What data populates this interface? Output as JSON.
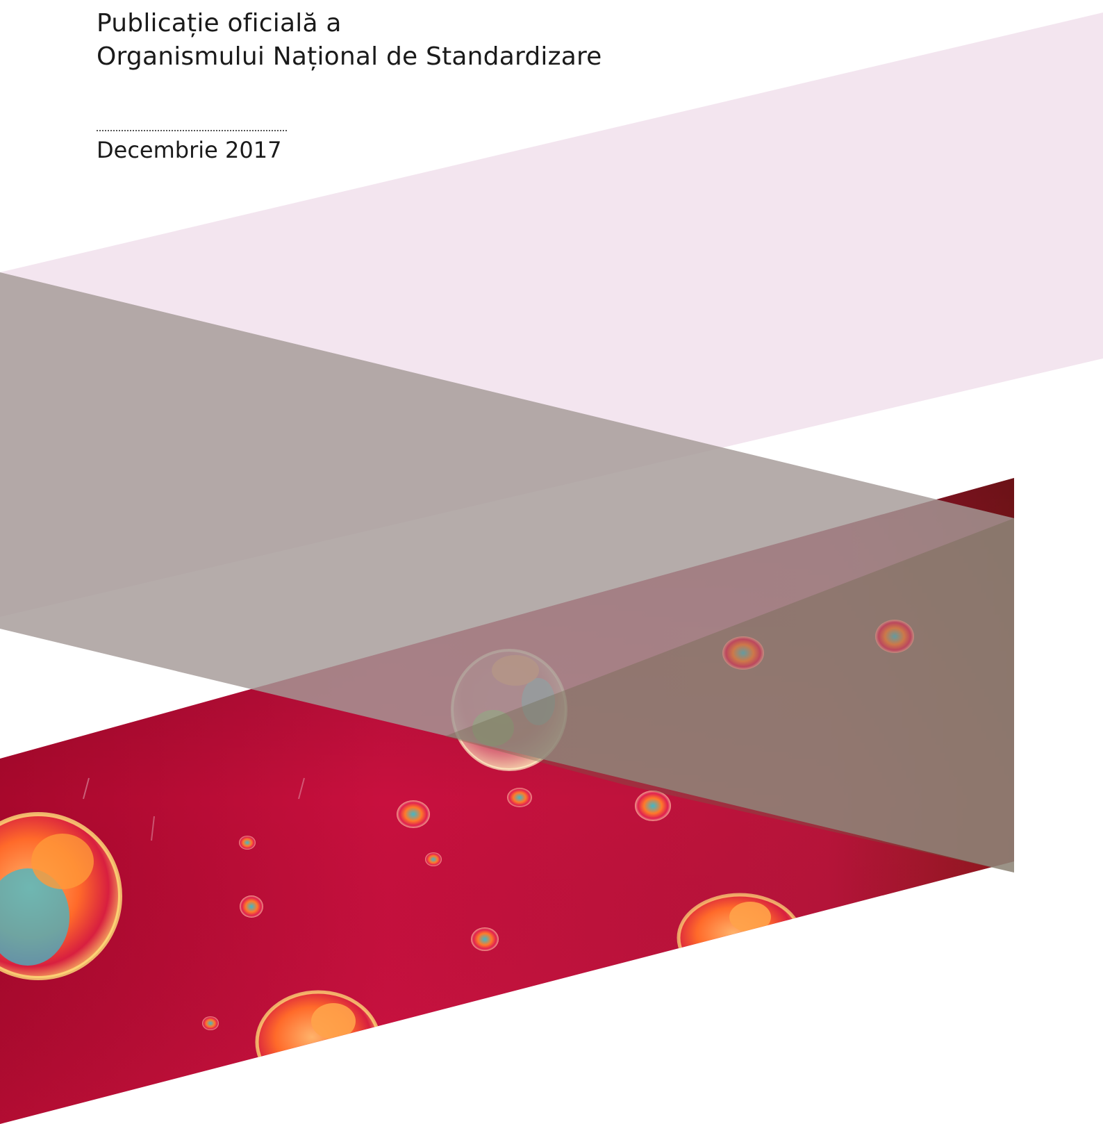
{
  "header": {
    "publication_line_1": "Publicație oficială a",
    "publication_line_2": "Organismului Național de Standardizare"
  },
  "issue": {
    "date": "Decembrie 2017"
  },
  "colors": {
    "pink_band": "#f3e5ef",
    "taupe_band": "#b0a5a2",
    "red_photo": "#c2123c",
    "olive_overlay": "#6e6553"
  }
}
